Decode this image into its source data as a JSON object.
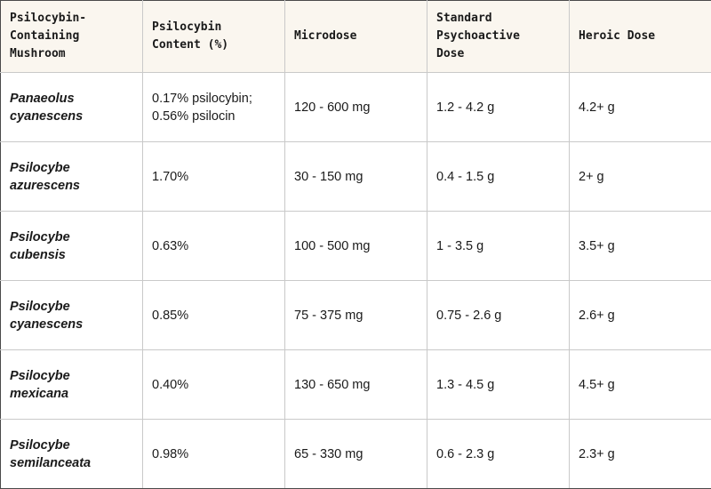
{
  "table": {
    "headers": [
      [
        "Psilocybin-",
        "Containing",
        "Mushroom"
      ],
      [
        "Psilocybin",
        "Content (%)"
      ],
      [
        "Microdose"
      ],
      [
        "Standard",
        "Psychoactive",
        "Dose"
      ],
      [
        "Heroic Dose"
      ]
    ],
    "rows": [
      {
        "mushroom": [
          "Panaeolus",
          "cyanescens"
        ],
        "content": [
          "0.17% psilocybin;",
          "0.56% psilocin"
        ],
        "microdose": "120 - 600 mg",
        "standard": "1.2 - 4.2 g",
        "heroic": "4.2+ g"
      },
      {
        "mushroom": [
          "Psilocybe",
          "azurescens"
        ],
        "content": [
          "1.70%"
        ],
        "microdose": "30 - 150 mg",
        "standard": "0.4 - 1.5 g",
        "heroic": "2+ g"
      },
      {
        "mushroom": [
          "Psilocybe",
          "cubensis"
        ],
        "content": [
          "0.63%"
        ],
        "microdose": "100 - 500 mg",
        "standard": "1 - 3.5 g",
        "heroic": "3.5+ g"
      },
      {
        "mushroom": [
          "Psilocybe",
          "cyanescens"
        ],
        "content": [
          "0.85%"
        ],
        "microdose": "75 - 375 mg",
        "standard": "0.75 - 2.6 g",
        "heroic": "2.6+ g"
      },
      {
        "mushroom": [
          "Psilocybe",
          "mexicana"
        ],
        "content": [
          "0.40%"
        ],
        "microdose": "130 - 650 mg",
        "standard": "1.3 - 4.5 g",
        "heroic": "4.5+ g"
      },
      {
        "mushroom": [
          "Psilocybe",
          "semilanceata"
        ],
        "content": [
          "0.98%"
        ],
        "microdose": "65 - 330 mg",
        "standard": "0.6 - 2.3 g",
        "heroic": "2.3+ g"
      }
    ]
  },
  "colors": {
    "header_background": "#faf6ef",
    "grid_line": "#c9c9c9",
    "frame": "#4a4a4a",
    "text": "#1a1a1a"
  }
}
